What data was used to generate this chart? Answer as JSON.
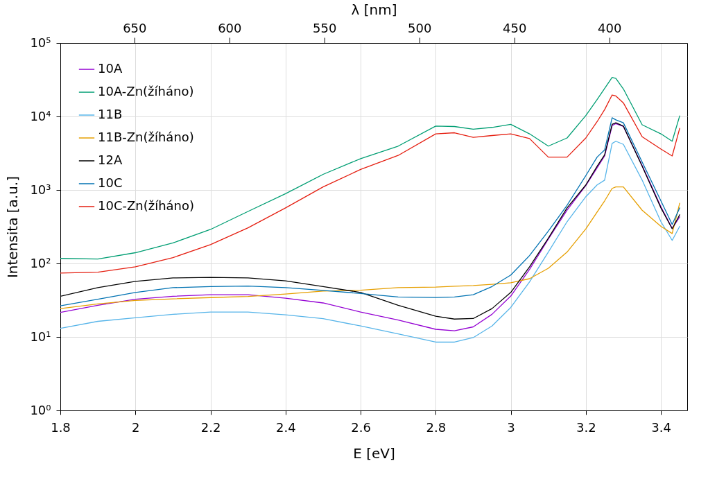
{
  "chart_data": {
    "type": "line",
    "xlabel": "E [eV]",
    "ylabel": "Intensita [a.u.]",
    "x2label": "λ [nm]",
    "x": [
      1.8,
      1.9,
      2.0,
      2.1,
      2.2,
      2.3,
      2.4,
      2.5,
      2.6,
      2.7,
      2.8,
      2.85,
      2.9,
      2.95,
      3.0,
      3.05,
      3.1,
      3.15,
      3.2,
      3.23,
      3.25,
      3.27,
      3.28,
      3.3,
      3.35,
      3.4,
      3.43,
      3.45
    ],
    "series": [
      {
        "name": "10A",
        "color": "#9400d3",
        "values": [
          21.6,
          27,
          32.6,
          35.7,
          37.5,
          37.5,
          33.7,
          29,
          21.8,
          17,
          12.7,
          12.1,
          13.7,
          20.3,
          36,
          83,
          214,
          530,
          1150,
          2000,
          2900,
          7500,
          8000,
          7300,
          2150,
          590,
          300,
          430
        ]
      },
      {
        "name": "10A-Zn(žíháno)",
        "color": "#009e73",
        "values": [
          117,
          115,
          140,
          190,
          290,
          510,
          890,
          1630,
          2670,
          3950,
          7400,
          7300,
          6700,
          7100,
          7800,
          5800,
          3950,
          5100,
          10300,
          17000,
          24000,
          34000,
          33000,
          23700,
          7700,
          5800,
          4600,
          10200
        ]
      },
      {
        "name": "11B",
        "color": "#56b4e9",
        "values": [
          13.1,
          16.3,
          18.2,
          20.3,
          21.8,
          21.8,
          20,
          17.7,
          14.1,
          11,
          8.5,
          8.5,
          9.8,
          14.1,
          25.2,
          56,
          143,
          370,
          810,
          1170,
          1360,
          4300,
          4600,
          4170,
          1360,
          370,
          206,
          320
        ]
      },
      {
        "name": "11B-Zn(žíháno)",
        "color": "#e69f00",
        "values": [
          24.3,
          28.2,
          31.4,
          33,
          34.3,
          35.6,
          38.4,
          42,
          43.3,
          46.8,
          47.7,
          49,
          50,
          52,
          54.6,
          62,
          86,
          143,
          296,
          500,
          710,
          1050,
          1100,
          1100,
          530,
          320,
          255,
          660
        ]
      },
      {
        "name": "12A",
        "color": "#000000",
        "values": [
          35.7,
          46.8,
          56.9,
          63.5,
          64.6,
          63.5,
          58,
          48.5,
          40.3,
          27,
          19.1,
          17.5,
          17.8,
          24.3,
          40.3,
          90,
          220,
          570,
          1170,
          2100,
          3000,
          7800,
          8200,
          7400,
          2100,
          570,
          296,
          460
        ]
      },
      {
        "name": "10C",
        "color": "#0072b2",
        "values": [
          26.5,
          32.6,
          40.3,
          46.8,
          48.5,
          49.2,
          46.8,
          43,
          39,
          35,
          34.4,
          35,
          37.5,
          48.5,
          69.5,
          128,
          275,
          620,
          1570,
          2800,
          3500,
          9600,
          9000,
          8200,
          2400,
          710,
          340,
          570
        ]
      },
      {
        "name": "10C-Zn(žíháno)",
        "color": "#e51e10",
        "values": [
          74,
          76,
          90,
          120,
          180,
          305,
          570,
          1100,
          1900,
          2950,
          5800,
          6000,
          5200,
          5500,
          5800,
          5000,
          2800,
          2800,
          5100,
          8500,
          12400,
          19600,
          19000,
          15300,
          5300,
          3600,
          2900,
          6900
        ]
      }
    ],
    "xlim": [
      1.8,
      3.47
    ],
    "xticks": [
      1.8,
      2,
      2.2,
      2.4,
      2.6,
      2.8,
      3,
      3.2,
      3.4
    ],
    "x2lim": [
      689,
      359
    ],
    "x2ticks": [
      650,
      600,
      550,
      500,
      450,
      400
    ],
    "ylim": [
      1,
      100000
    ],
    "yticks": [
      {
        "value": 1,
        "label": "10⁰"
      },
      {
        "value": 10,
        "label": "10¹"
      },
      {
        "value": 100,
        "label": "10²"
      },
      {
        "value": 1000,
        "label": "10³"
      },
      {
        "value": 10000,
        "label": "10⁴"
      },
      {
        "value": 100000,
        "label": "10⁵"
      }
    ],
    "log": "y",
    "grid": true,
    "legend": "top left",
    "line_style": "solid"
  }
}
